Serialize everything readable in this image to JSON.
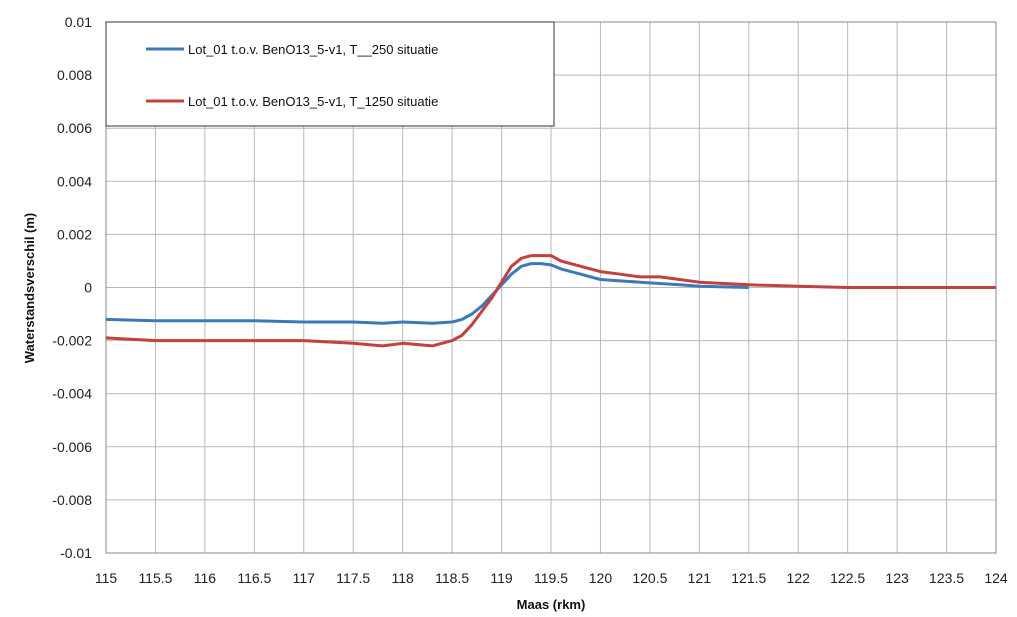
{
  "chart_data": {
    "type": "line",
    "title": "",
    "xlabel": "Maas (rkm)",
    "ylabel": "Waterstandsverschil (m)",
    "xlim": [
      115,
      124
    ],
    "ylim": [
      -0.01,
      0.01
    ],
    "grid": true,
    "legend_position": "top-left",
    "x_ticks": [
      "115",
      "115.5",
      "116",
      "116.5",
      "117",
      "117.5",
      "118",
      "118.5",
      "119",
      "119.5",
      "120",
      "120.5",
      "121",
      "121.5",
      "122",
      "122.5",
      "123",
      "123.5",
      "124"
    ],
    "y_ticks": [
      "0.01",
      "0.008",
      "0.006",
      "0.004",
      "0.002",
      "0",
      "-0.002",
      "-0.004",
      "-0.006",
      "-0.008",
      "-0.01"
    ],
    "series": [
      {
        "name": "Lot_01 t.o.v. BenO13_5-v1, T__250 situatie",
        "color": "#3e78b9",
        "x": [
          115,
          115.5,
          116,
          116.5,
          117,
          117.5,
          117.8,
          118,
          118.3,
          118.5,
          118.6,
          118.7,
          118.8,
          118.9,
          119,
          119.1,
          119.2,
          119.3,
          119.4,
          119.5,
          119.6,
          119.8,
          120,
          120.2,
          120.4,
          120.6,
          120.8,
          121,
          121.2,
          121.5
        ],
        "y": [
          -0.0012,
          -0.00125,
          -0.00125,
          -0.00125,
          -0.0013,
          -0.0013,
          -0.00135,
          -0.0013,
          -0.00135,
          -0.0013,
          -0.0012,
          -0.001,
          -0.0007,
          -0.0003,
          0.0001,
          0.0005,
          0.0008,
          0.0009,
          0.0009,
          0.00085,
          0.0007,
          0.0005,
          0.0003,
          0.00025,
          0.0002,
          0.00015,
          0.0001,
          5e-05,
          3e-05,
          0.0
        ]
      },
      {
        "name": "Lot_01 t.o.v. BenO13_5-v1, T_1250 situatie",
        "color": "#c0413e",
        "x": [
          115,
          115.5,
          116,
          116.5,
          117,
          117.5,
          117.8,
          118,
          118.3,
          118.5,
          118.6,
          118.7,
          118.8,
          118.9,
          119,
          119.1,
          119.2,
          119.3,
          119.4,
          119.5,
          119.6,
          119.8,
          120,
          120.2,
          120.4,
          120.6,
          120.8,
          121,
          121.5,
          122,
          122.5,
          123,
          123.5,
          124
        ],
        "y": [
          -0.0019,
          -0.002,
          -0.002,
          -0.002,
          -0.002,
          -0.0021,
          -0.0022,
          -0.0021,
          -0.0022,
          -0.002,
          -0.0018,
          -0.0014,
          -0.0009,
          -0.0004,
          0.0002,
          0.0008,
          0.0011,
          0.0012,
          0.0012,
          0.0012,
          0.001,
          0.0008,
          0.0006,
          0.0005,
          0.0004,
          0.0004,
          0.0003,
          0.0002,
          0.0001,
          5e-05,
          0.0,
          0.0,
          0.0,
          0.0
        ]
      }
    ]
  }
}
